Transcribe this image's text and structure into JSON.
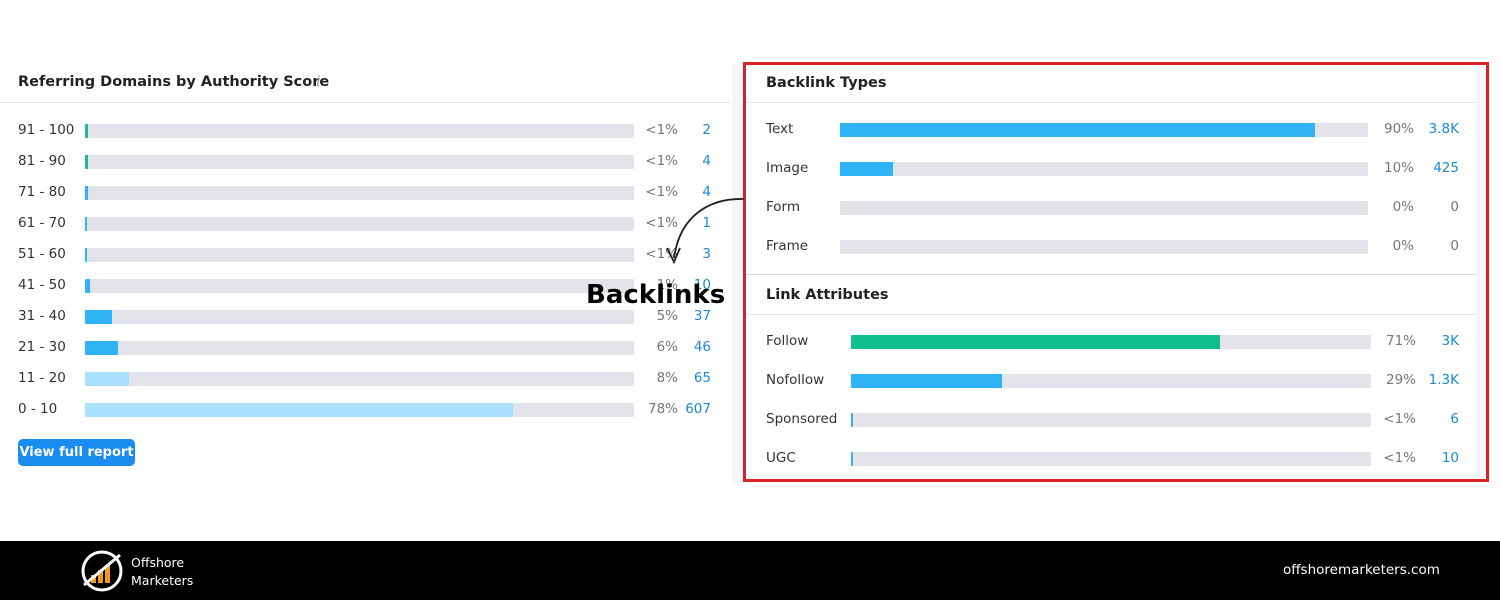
{
  "left_panel": {
    "title": "Referring Domains by Authority Score",
    "info_icon": "i",
    "rows": [
      {
        "range": "91 - 100",
        "share": {
          "value": 0.5,
          "label": "<1%"
        },
        "count": "2",
        "color": "#1fb89a"
      },
      {
        "range": "81 - 90",
        "share": {
          "value": 0.5,
          "label": "<1%"
        },
        "count": "4",
        "color": "#1fb89a"
      },
      {
        "range": "71 - 80",
        "share": {
          "value": 0.5,
          "label": "<1%"
        },
        "count": "4",
        "color": "#2eb3f7"
      },
      {
        "range": "61 - 70",
        "share": {
          "value": 0.3,
          "label": "<1%"
        },
        "count": "1",
        "color": "#2eb3f7"
      },
      {
        "range": "51 - 60",
        "share": {
          "value": 0.4,
          "label": "<1%"
        },
        "count": "3",
        "color": "#2eb3f7"
      },
      {
        "range": "41 - 50",
        "share": {
          "value": 1,
          "label": "1%"
        },
        "count": "10",
        "color": "#2eb3f7"
      },
      {
        "range": "31 - 40",
        "share": {
          "value": 5,
          "label": "5%"
        },
        "count": "37",
        "color": "#2eb3f7"
      },
      {
        "range": "21 - 30",
        "share": {
          "value": 6,
          "label": "6%"
        },
        "count": "46",
        "color": "#2eb3f7"
      },
      {
        "range": "11 - 20",
        "share": {
          "value": 8,
          "label": "8%"
        },
        "count": "65",
        "color": "#a9e0fb"
      },
      {
        "range": "0 - 10",
        "share": {
          "value": 78,
          "label": "78%"
        },
        "count": "607",
        "color": "#a9e0fb"
      }
    ],
    "button": "View full report"
  },
  "right_panel": {
    "backlink_types": {
      "title": "Backlink Types",
      "rows": [
        {
          "name": "Text",
          "share": {
            "value": 90,
            "label": "90%"
          },
          "count": "3.8K",
          "color": "#2eb3f7"
        },
        {
          "name": "Image",
          "share": {
            "value": 10,
            "label": "10%"
          },
          "count": "425",
          "color": "#2eb3f7"
        },
        {
          "name": "Form",
          "share": {
            "value": 0,
            "label": "0%"
          },
          "count": "0",
          "color": "#2eb3f7"
        },
        {
          "name": "Frame",
          "share": {
            "value": 0,
            "label": "0%"
          },
          "count": "0",
          "color": "#2eb3f7"
        }
      ]
    },
    "link_attributes": {
      "title": "Link Attributes",
      "rows": [
        {
          "name": "Follow",
          "share": {
            "value": 71,
            "label": "71%"
          },
          "count": "3K",
          "color": "#0fbf8f"
        },
        {
          "name": "Nofollow",
          "share": {
            "value": 29,
            "label": "29%"
          },
          "count": "1.3K",
          "color": "#2eb3f7"
        },
        {
          "name": "Sponsored",
          "share": {
            "value": 0.3,
            "label": "<1%"
          },
          "count": "6",
          "color": "#2eb3f7"
        },
        {
          "name": "UGC",
          "share": {
            "value": 0.3,
            "label": "<1%"
          },
          "count": "10",
          "color": "#2eb3f7"
        }
      ]
    }
  },
  "annotation": "Backlinks",
  "footer": {
    "brand_line1": "Offshore",
    "brand_line2": "Marketers",
    "website": "offshoremarketers.com"
  }
}
